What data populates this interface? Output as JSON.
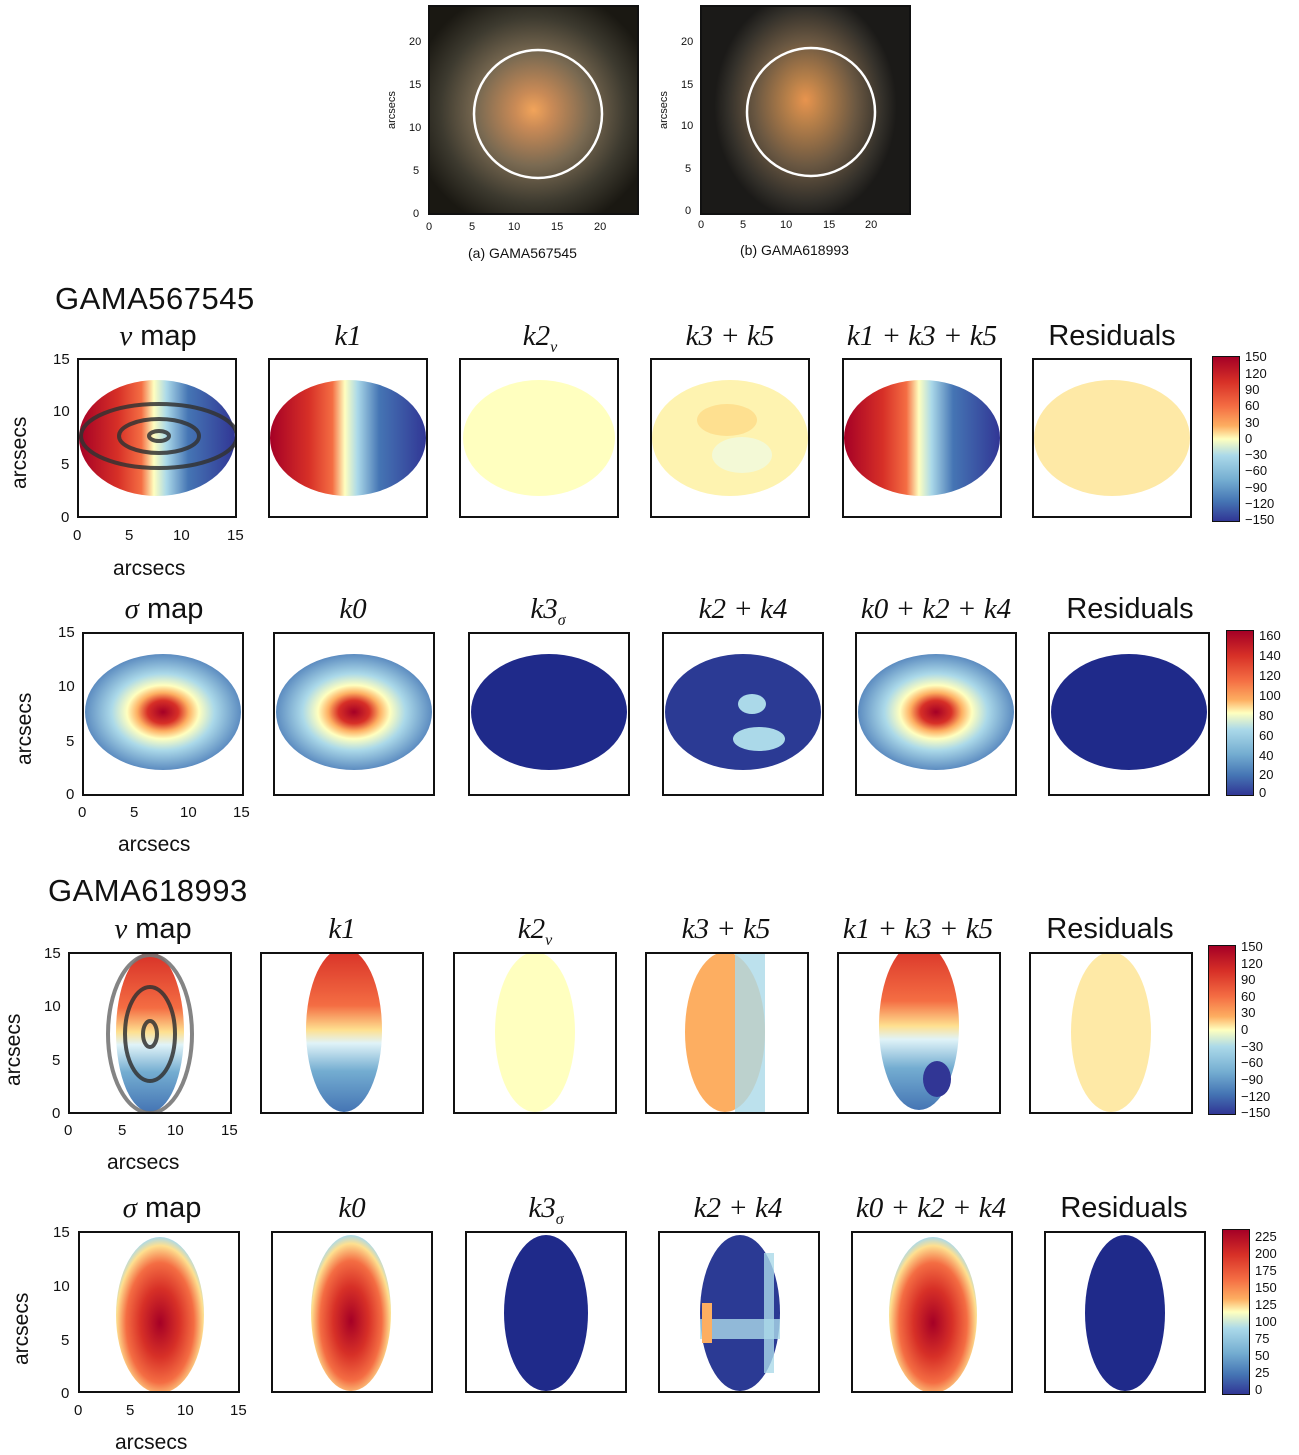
{
  "images": {
    "a": {
      "caption": "(a) GAMA567545",
      "ylabel": "arcsecs",
      "yticks": [
        "20",
        "15",
        "10",
        "5",
        "0"
      ],
      "xticks": [
        "0",
        "5",
        "10",
        "15",
        "20"
      ]
    },
    "b": {
      "caption": "(b) GAMA618993",
      "ylabel": "arcsecs",
      "yticks": [
        "20",
        "15",
        "10",
        "5",
        "0"
      ],
      "xticks": [
        "0",
        "5",
        "10",
        "15",
        "20"
      ]
    }
  },
  "galaxies": [
    {
      "name": "GAMA567545",
      "rows": [
        {
          "titles": [
            "map",
            "k1",
            "k2",
            "k3 + k5",
            "k1 + k3 + k5",
            "Residuals"
          ],
          "first_prefix": "v",
          "cbar_ticks": [
            "150",
            "120",
            "90",
            "60",
            "30",
            "0",
            "−30",
            "−60",
            "−90",
            "−120",
            "−150"
          ]
        },
        {
          "titles": [
            "map",
            "k0",
            "k3",
            "k2 + k4",
            "k0 + k2 + k4",
            "Residuals"
          ],
          "first_prefix": "σ",
          "cbar_ticks": [
            "160",
            "140",
            "120",
            "100",
            "80",
            "60",
            "40",
            "20",
            "0"
          ]
        }
      ]
    },
    {
      "name": "GAMA618993",
      "rows": [
        {
          "titles": [
            "map",
            "k1",
            "k2",
            "k3 + k5",
            "k1 + k3 + k5",
            "Residuals"
          ],
          "first_prefix": "v",
          "cbar_ticks": [
            "150",
            "120",
            "90",
            "60",
            "30",
            "0",
            "−30",
            "−60",
            "−90",
            "−120",
            "−150"
          ]
        },
        {
          "titles": [
            "map",
            "k0",
            "k3",
            "k2 + k4",
            "k0 + k2 + k4",
            "Residuals"
          ],
          "first_prefix": "σ",
          "cbar_ticks": [
            "225",
            "200",
            "175",
            "150",
            "125",
            "100",
            "75",
            "50",
            "25",
            "0"
          ]
        }
      ]
    }
  ],
  "axis": {
    "ylabel": "arcsecs",
    "xlabel": "arcsecs",
    "yticks": [
      "15",
      "10",
      "5",
      "0"
    ],
    "xticks": [
      "0",
      "5",
      "10",
      "15"
    ]
  },
  "subscripts": {
    "v": "v",
    "sigma": "σ"
  },
  "colors": {
    "red": "#a50026",
    "orange": "#f46d43",
    "yellow": "#ffffbf",
    "lightblue": "#abd9e9",
    "blue": "#313695",
    "navy": "#1f2a8a"
  }
}
